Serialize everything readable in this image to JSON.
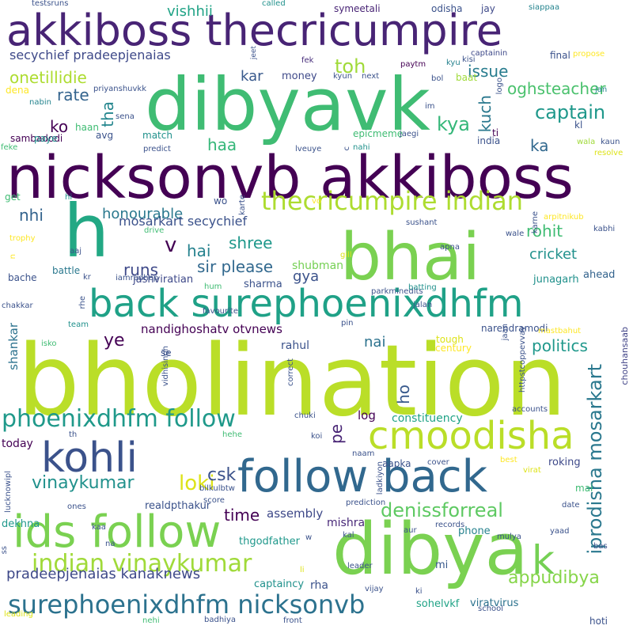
{
  "words": [
    {
      "text": "bholination",
      "color": "#bade28"
    },
    {
      "text": "bhai",
      "color": "#7ad151"
    },
    {
      "text": "dibyavk",
      "color": "#3fbc73"
    },
    {
      "text": "dibya",
      "color": "#7ad151"
    },
    {
      "text": "nicksonvb akkiboss",
      "color": "#440154"
    },
    {
      "text": "akkiboss thecricumpire",
      "color": "#482475"
    },
    {
      "text": "back surephoenixdhfm",
      "color": "#1fa187"
    },
    {
      "text": "follow back",
      "color": "#31688e"
    },
    {
      "text": "h",
      "color": "#22a884"
    },
    {
      "text": "ids follow",
      "color": "#7ad151"
    },
    {
      "text": "kohli",
      "color": "#3b528b"
    },
    {
      "text": "cmoodisha",
      "color": "#bade28"
    },
    {
      "text": "k",
      "color": "#75d054"
    },
    {
      "text": "surephoenixdhfm nicksonvb",
      "color": "#2c728e"
    },
    {
      "text": "thecricumpire indian",
      "color": "#addc30"
    },
    {
      "text": "phoenixdhfm follow",
      "color": "#1f998a"
    },
    {
      "text": "indian vinaykumar",
      "color": "#a0da39"
    },
    {
      "text": "vinaykumar",
      "color": "#21918c"
    },
    {
      "text": "loki",
      "color": "#dde318"
    },
    {
      "text": "csk",
      "color": "#3b528b"
    },
    {
      "text": "denissforreal",
      "color": "#5ec962"
    },
    {
      "text": "appudibya",
      "color": "#86d549"
    },
    {
      "text": "iprodisha mosarkart",
      "color": "#2a788e"
    },
    {
      "text": "pradeepjenaias kanaknews",
      "color": "#3e4989"
    },
    {
      "text": "captain",
      "color": "#1f988b"
    },
    {
      "text": "kya",
      "color": "#35b779"
    },
    {
      "text": "toh",
      "color": "#a0da39"
    },
    {
      "text": "issue",
      "color": "#287c8e"
    },
    {
      "text": "oghsteacher",
      "color": "#4ac16d"
    },
    {
      "text": "onetillidie",
      "color": "#addc30"
    },
    {
      "text": "rate",
      "color": "#33638d"
    },
    {
      "text": "ko",
      "color": "#440154"
    },
    {
      "text": "kuch",
      "color": "#2a788e"
    },
    {
      "text": "tha",
      "color": "#24868e"
    },
    {
      "text": "haa",
      "color": "#35b779"
    },
    {
      "text": "ka",
      "color": "#31688e"
    },
    {
      "text": "vishhii",
      "color": "#20a386"
    },
    {
      "text": "secychief pradeepjenaias",
      "color": "#3e4989"
    },
    {
      "text": "kar",
      "color": "#38598c"
    },
    {
      "text": "money",
      "color": "#3e4989"
    },
    {
      "text": "honourable",
      "color": "#2a788e"
    },
    {
      "text": "nhi",
      "color": "#33638d"
    },
    {
      "text": "mosarkart secychief",
      "color": "#3b528b"
    },
    {
      "text": "rohit",
      "color": "#3fbc73"
    },
    {
      "text": "shree",
      "color": "#1f988b"
    },
    {
      "text": "v",
      "color": "#440154"
    },
    {
      "text": "hai",
      "color": "#26828e"
    },
    {
      "text": "sir please",
      "color": "#31688e"
    },
    {
      "text": "runs",
      "color": "#3e4989"
    },
    {
      "text": "cricket",
      "color": "#21918c"
    },
    {
      "text": "gya",
      "color": "#3b528b"
    },
    {
      "text": "shubman",
      "color": "#75d054"
    },
    {
      "text": "jashviratian",
      "color": "#3e4989"
    },
    {
      "text": "sharma",
      "color": "#3b528b"
    },
    {
      "text": "junagarh",
      "color": "#21918c"
    },
    {
      "text": "ahead",
      "color": "#33638d"
    },
    {
      "text": "ye",
      "color": "#440154"
    },
    {
      "text": "nandighoshatv otvnews",
      "color": "#440154"
    },
    {
      "text": "rahul",
      "color": "#3b528b"
    },
    {
      "text": "nai",
      "color": "#2c728e"
    },
    {
      "text": "politics",
      "color": "#1f988b"
    },
    {
      "text": "ho",
      "color": "#38598c"
    },
    {
      "text": "pe",
      "color": "#482475"
    },
    {
      "text": "log",
      "color": "#440154"
    },
    {
      "text": "constituency",
      "color": "#20a386"
    },
    {
      "text": "time",
      "color": "#440154"
    },
    {
      "text": "assembly",
      "color": "#3e4989"
    },
    {
      "text": "mishra",
      "color": "#482878"
    },
    {
      "text": "thgodfather",
      "color": "#1f988b"
    },
    {
      "text": "realdpthakur",
      "color": "#3b528b"
    },
    {
      "text": "roking",
      "color": "#3e4989"
    },
    {
      "text": "shankar",
      "color": "#2c728e"
    },
    {
      "text": "today",
      "color": "#440154"
    },
    {
      "text": "dekhna",
      "color": "#1f988b"
    },
    {
      "text": "phone",
      "color": "#26828e"
    },
    {
      "text": "mi",
      "color": "#38598c"
    },
    {
      "text": "rha",
      "color": "#3b528b"
    },
    {
      "text": "captaincy",
      "color": "#21918c"
    },
    {
      "text": "viratvirus",
      "color": "#2c728e"
    },
    {
      "text": "sohelvkf",
      "color": "#20a386"
    },
    {
      "text": "chouhansaab",
      "color": "#414487"
    },
    {
      "text": "testsruns",
      "color": "#3b528b"
    },
    {
      "text": "called",
      "color": "#21918c"
    },
    {
      "text": "symeetali",
      "color": "#482475"
    },
    {
      "text": "odisha",
      "color": "#3b528b"
    },
    {
      "text": "jay",
      "color": "#3e4989"
    },
    {
      "text": "siappaa",
      "color": "#25848e"
    },
    {
      "text": "captainin",
      "color": "#3e4989"
    },
    {
      "text": "baat",
      "color": "#a0da39"
    },
    {
      "text": "final",
      "color": "#3b528b"
    },
    {
      "text": "propose",
      "color": "#fde725"
    },
    {
      "text": "fek",
      "color": "#472d7b"
    },
    {
      "text": "paytm",
      "color": "#440154"
    },
    {
      "text": "kyu",
      "color": "#26828e"
    },
    {
      "text": "kisi",
      "color": "#3b528b"
    },
    {
      "text": "jan",
      "color": "#25848e"
    },
    {
      "text": "jeet",
      "color": "#3b528b"
    },
    {
      "text": "kyun",
      "color": "#3b528b"
    },
    {
      "text": "next",
      "color": "#3b528b"
    },
    {
      "text": "bol",
      "color": "#3b528b"
    },
    {
      "text": "dena",
      "color": "#fde725"
    },
    {
      "text": "priyanshuvkk",
      "color": "#3b528b"
    },
    {
      "text": "nabin",
      "color": "#25848e"
    },
    {
      "text": "logo",
      "color": "#3b528b"
    },
    {
      "text": "im",
      "color": "#3b528b"
    },
    {
      "text": "haan",
      "color": "#3fbc73"
    },
    {
      "text": "sena",
      "color": "#3b528b"
    },
    {
      "text": "kl",
      "color": "#3b528b"
    },
    {
      "text": "sambadodi",
      "color": "#440154"
    },
    {
      "text": "paye",
      "color": "#21918c"
    },
    {
      "text": "avg",
      "color": "#3b528b"
    },
    {
      "text": "match",
      "color": "#21918c"
    },
    {
      "text": "epicmeme",
      "color": "#3fbc73"
    },
    {
      "text": "jaegi",
      "color": "#3b528b"
    },
    {
      "text": "ti",
      "color": "#440154"
    },
    {
      "text": "india",
      "color": "#3b528b"
    },
    {
      "text": "wala",
      "color": "#a0da39"
    },
    {
      "text": "kaun",
      "color": "#3b528b"
    },
    {
      "text": "feke",
      "color": "#3fbc73"
    },
    {
      "text": "predict",
      "color": "#3b528b"
    },
    {
      "text": "lveuye",
      "color": "#3b528b"
    },
    {
      "text": "nahi",
      "color": "#21918c"
    },
    {
      "text": "c",
      "color": "#3b528b"
    },
    {
      "text": "resolve",
      "color": "#dde318"
    },
    {
      "text": "get",
      "color": "#3fbc73"
    },
    {
      "text": "hi",
      "color": "#21918c"
    },
    {
      "text": "wo",
      "color": "#3b528b"
    },
    {
      "text": "karte",
      "color": "#3b528b"
    },
    {
      "text": "vo",
      "color": "#fde725"
    },
    {
      "text": "karne",
      "color": "#3b528b"
    },
    {
      "text": "arpitnikub",
      "color": "#fde725"
    },
    {
      "text": "trophy",
      "color": "#fde725"
    },
    {
      "text": "drive",
      "color": "#3fbc73"
    },
    {
      "text": "sushant",
      "color": "#3b528b"
    },
    {
      "text": "kabhi",
      "color": "#3b528b"
    },
    {
      "text": "n",
      "color": "#fde725"
    },
    {
      "text": "aaj",
      "color": "#3b528b"
    },
    {
      "text": "apna",
      "color": "#3b528b"
    },
    {
      "text": "wale",
      "color": "#3b528b"
    },
    {
      "text": "gill",
      "color": "#dde318"
    },
    {
      "text": "battle",
      "color": "#2a788e"
    },
    {
      "text": "bache",
      "color": "#3b528b"
    },
    {
      "text": "kr",
      "color": "#3b528b"
    },
    {
      "text": "iamradhep",
      "color": "#3b528b"
    },
    {
      "text": "hum",
      "color": "#3fbc73"
    },
    {
      "text": "parkminedits",
      "color": "#3b528b"
    },
    {
      "text": "batting",
      "color": "#21918c"
    },
    {
      "text": "chakkar",
      "color": "#3b528b"
    },
    {
      "text": "rhe",
      "color": "#3b528b"
    },
    {
      "text": "favourite",
      "color": "#3b528b"
    },
    {
      "text": "jalan",
      "color": "#3b528b"
    },
    {
      "text": "pin",
      "color": "#3b528b"
    },
    {
      "text": "narendramodi",
      "color": "#3b528b"
    },
    {
      "text": "team",
      "color": "#21918c"
    },
    {
      "text": "isko",
      "color": "#3fbc73"
    },
    {
      "text": "se",
      "color": "#3b528b"
    },
    {
      "text": "tough",
      "color": "#dde318"
    },
    {
      "text": "century",
      "color": "#fde725"
    },
    {
      "text": "jaan",
      "color": "#3b528b"
    },
    {
      "text": "httpstcoppevvay",
      "color": "#3b528b"
    },
    {
      "text": "mastbahut",
      "color": "#fde725"
    },
    {
      "text": "vidhisingh",
      "color": "#3b528b"
    },
    {
      "text": "correct",
      "color": "#3b528b"
    },
    {
      "text": "chuki",
      "color": "#3b528b"
    },
    {
      "text": "accounts",
      "color": "#3b528b"
    },
    {
      "text": "th",
      "color": "#3b528b"
    },
    {
      "text": "hehe",
      "color": "#3fbc73"
    },
    {
      "text": "koi",
      "color": "#3b528b"
    },
    {
      "text": "naam",
      "color": "#3b528b"
    },
    {
      "text": "best",
      "color": "#fde725"
    },
    {
      "text": "aapka",
      "color": "#3b528b"
    },
    {
      "text": "cover",
      "color": "#3b528b"
    },
    {
      "text": "virat",
      "color": "#dde318"
    },
    {
      "text": "mai",
      "color": "#3fbc73"
    },
    {
      "text": "lucknowipl",
      "color": "#3b528b"
    },
    {
      "text": "bilkulbtw",
      "color": "#3b528b"
    },
    {
      "text": "ladkiyon",
      "color": "#3b528b"
    },
    {
      "text": "date",
      "color": "#3b528b"
    },
    {
      "text": "ones",
      "color": "#3b528b"
    },
    {
      "text": "score",
      "color": "#3b528b"
    },
    {
      "text": "prediction",
      "color": "#3b528b"
    },
    {
      "text": "ss",
      "color": "#3b528b"
    },
    {
      "text": "kaa",
      "color": "#3b528b"
    },
    {
      "text": "na",
      "color": "#3b528b"
    },
    {
      "text": "aur",
      "color": "#3b528b"
    },
    {
      "text": "records",
      "color": "#3b528b"
    },
    {
      "text": "mulya",
      "color": "#3b528b"
    },
    {
      "text": "yaad",
      "color": "#3b528b"
    },
    {
      "text": "w",
      "color": "#3b528b"
    },
    {
      "text": "kal",
      "color": "#3b528b"
    },
    {
      "text": "bas",
      "color": "#3b528b"
    },
    {
      "text": "li",
      "color": "#dde318"
    },
    {
      "text": "leader",
      "color": "#3b528b"
    },
    {
      "text": "hoti",
      "color": "#3b528b"
    },
    {
      "text": "leading",
      "color": "#dde318"
    },
    {
      "text": "vijay",
      "color": "#3b528b"
    },
    {
      "text": "ki",
      "color": "#3b528b"
    },
    {
      "text": "school",
      "color": "#3b528b"
    },
    {
      "text": "nehi",
      "color": "#3fbc73"
    },
    {
      "text": "badhiya",
      "color": "#3b528b"
    },
    {
      "text": "front",
      "color": "#3b528b"
    }
  ]
}
